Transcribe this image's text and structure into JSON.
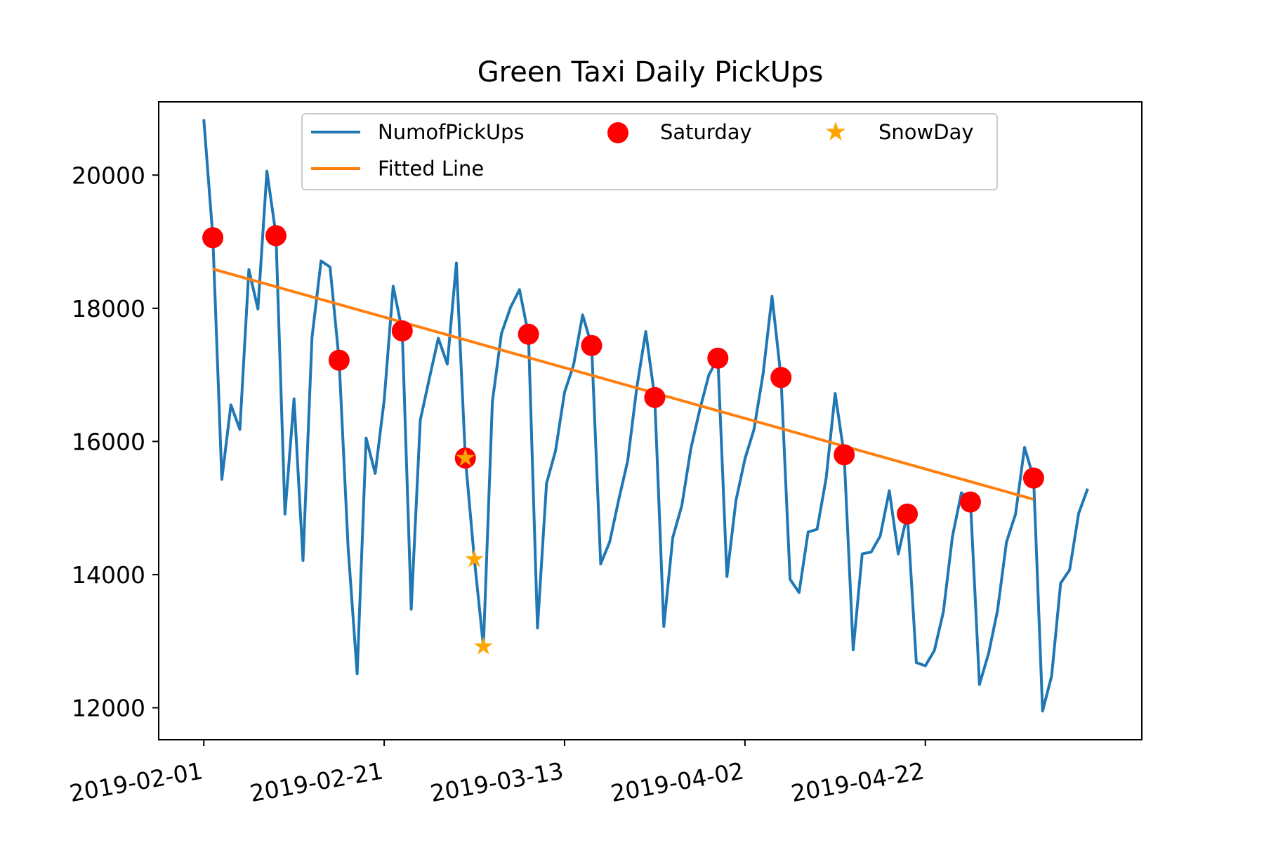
{
  "chart_data": {
    "type": "line",
    "title": "Green Taxi Daily PickUps",
    "xlabel": "",
    "ylabel": "",
    "x_start": "2019-02-01",
    "x_end": "2019-05-10",
    "xlim": [
      "2019-01-27",
      "2019-05-16"
    ],
    "ylim": [
      11520,
      21100
    ],
    "x_ticks": [
      "2019-02-01",
      "2019-02-21",
      "2019-03-13",
      "2019-04-02",
      "2019-04-22"
    ],
    "y_ticks": [
      12000,
      14000,
      16000,
      18000,
      20000
    ],
    "grid": false,
    "legend": {
      "placement": "upper center",
      "columns": 3,
      "entries": [
        "NumofPickUps",
        "Saturday",
        "SnowDay",
        "Fitted Line"
      ]
    },
    "series": [
      {
        "name": "NumofPickUps",
        "kind": "line",
        "color": "#1f77b4",
        "values": [
          20840,
          19070,
          15430,
          16550,
          16180,
          18580,
          17990,
          20060,
          19100,
          14910,
          16640,
          14210,
          17560,
          18710,
          18620,
          17220,
          14410,
          12510,
          16050,
          15520,
          16620,
          18330,
          17660,
          13480,
          16320,
          16940,
          17550,
          17160,
          18680,
          15750,
          14230,
          12920,
          16600,
          17620,
          18010,
          18280,
          17600,
          13200,
          15370,
          15860,
          16740,
          17150,
          17900,
          17440,
          14160,
          14490,
          15120,
          15710,
          16800,
          17650,
          16660,
          13220,
          14560,
          15040,
          15890,
          16480,
          17000,
          17250,
          13970,
          15110,
          15740,
          16180,
          17010,
          18180,
          16960,
          13930,
          13730,
          14640,
          14680,
          15450,
          16720,
          15800,
          12870,
          14310,
          14340,
          14580,
          15260,
          14310,
          14910,
          12680,
          12630,
          12860,
          13440,
          14570,
          15230,
          15090,
          12350,
          12810,
          13460,
          14490,
          14910,
          15910,
          15450,
          11950,
          12480,
          13870,
          14070,
          14920,
          15290
        ]
      },
      {
        "name": "Saturday",
        "kind": "marker",
        "marker": "circle",
        "color": "#ff0000",
        "x": [
          "2019-02-02",
          "2019-02-09",
          "2019-02-16",
          "2019-02-23",
          "2019-03-02",
          "2019-03-09",
          "2019-03-16",
          "2019-03-23",
          "2019-03-30",
          "2019-04-06",
          "2019-04-13",
          "2019-04-20",
          "2019-04-27",
          "2019-05-04"
        ],
        "values": [
          19060,
          19090,
          17220,
          17660,
          15750,
          17610,
          17440,
          16660,
          17250,
          16960,
          15800,
          14910,
          15090,
          15450
        ]
      },
      {
        "name": "SnowDay",
        "kind": "marker",
        "marker": "star",
        "color": "#ffa500",
        "x": [
          "2019-03-02",
          "2019-03-03",
          "2019-03-04"
        ],
        "values": [
          15750,
          14230,
          12920
        ]
      },
      {
        "name": "Fitted Line",
        "kind": "line",
        "color": "#ff7f0e",
        "x": [
          "2019-02-02",
          "2019-05-04"
        ],
        "values": [
          18590,
          15130
        ]
      }
    ]
  }
}
